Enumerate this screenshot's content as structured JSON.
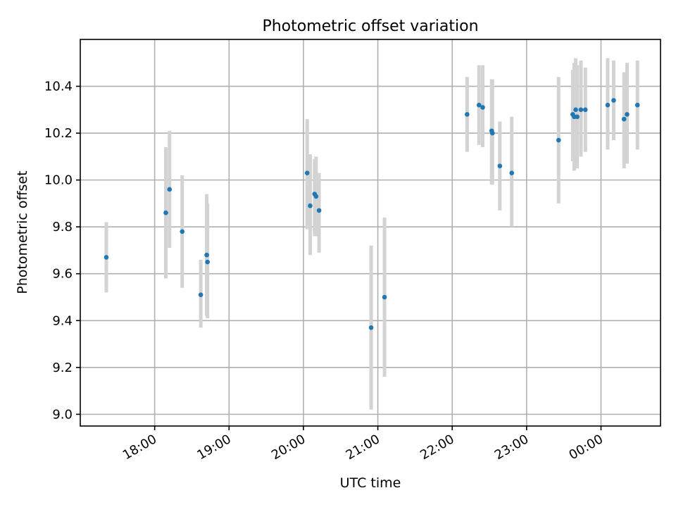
{
  "chart_data": {
    "type": "scatter",
    "title": "Photometric offset variation",
    "xlabel": "UTC time",
    "ylabel": "Photometric offset",
    "x_unit": "hours since 17:00 UTC",
    "xlim": [
      0.0,
      7.8
    ],
    "ylim": [
      8.95,
      10.6
    ],
    "grid": true,
    "x_ticks": [
      {
        "value": 1.0,
        "label": "18:00"
      },
      {
        "value": 2.0,
        "label": "19:00"
      },
      {
        "value": 3.0,
        "label": "20:00"
      },
      {
        "value": 4.0,
        "label": "21:00"
      },
      {
        "value": 5.0,
        "label": "22:00"
      },
      {
        "value": 6.0,
        "label": "23:00"
      },
      {
        "value": 7.0,
        "label": "00:00"
      }
    ],
    "y_ticks": [
      {
        "value": 9.0,
        "label": "9.0"
      },
      {
        "value": 9.2,
        "label": "9.2"
      },
      {
        "value": 9.4,
        "label": "9.4"
      },
      {
        "value": 9.6,
        "label": "9.6"
      },
      {
        "value": 9.8,
        "label": "9.8"
      },
      {
        "value": 10.0,
        "label": "10.0"
      },
      {
        "value": 10.2,
        "label": "10.2"
      },
      {
        "value": 10.4,
        "label": "10.4"
      }
    ],
    "points": [
      {
        "x": 0.35,
        "y": 9.67,
        "ylo": 9.52,
        "yhi": 9.82
      },
      {
        "x": 1.15,
        "y": 9.86,
        "ylo": 9.58,
        "yhi": 10.14
      },
      {
        "x": 1.2,
        "y": 9.96,
        "ylo": 9.71,
        "yhi": 10.21
      },
      {
        "x": 1.37,
        "y": 9.78,
        "ylo": 9.54,
        "yhi": 10.02
      },
      {
        "x": 1.62,
        "y": 9.51,
        "ylo": 9.37,
        "yhi": 9.66
      },
      {
        "x": 1.7,
        "y": 9.68,
        "ylo": 9.42,
        "yhi": 9.94
      },
      {
        "x": 1.71,
        "y": 9.65,
        "ylo": 9.41,
        "yhi": 9.9
      },
      {
        "x": 3.05,
        "y": 10.03,
        "ylo": 9.79,
        "yhi": 10.26
      },
      {
        "x": 3.09,
        "y": 9.89,
        "ylo": 9.68,
        "yhi": 10.11
      },
      {
        "x": 3.15,
        "y": 9.94,
        "ylo": 9.76,
        "yhi": 10.09
      },
      {
        "x": 3.17,
        "y": 9.93,
        "ylo": 9.76,
        "yhi": 10.1
      },
      {
        "x": 3.21,
        "y": 9.87,
        "ylo": 9.69,
        "yhi": 10.03
      },
      {
        "x": 3.91,
        "y": 9.37,
        "ylo": 9.02,
        "yhi": 9.72
      },
      {
        "x": 4.09,
        "y": 9.5,
        "ylo": 9.16,
        "yhi": 9.84
      },
      {
        "x": 5.2,
        "y": 10.28,
        "ylo": 10.12,
        "yhi": 10.44
      },
      {
        "x": 5.36,
        "y": 10.32,
        "ylo": 10.15,
        "yhi": 10.49
      },
      {
        "x": 5.41,
        "y": 10.31,
        "ylo": 10.14,
        "yhi": 10.49
      },
      {
        "x": 5.53,
        "y": 10.21,
        "ylo": 9.98,
        "yhi": 10.43
      },
      {
        "x": 5.54,
        "y": 10.2,
        "ylo": 9.98,
        "yhi": 10.43
      },
      {
        "x": 5.64,
        "y": 10.06,
        "ylo": 9.87,
        "yhi": 10.25
      },
      {
        "x": 5.8,
        "y": 10.03,
        "ylo": 9.8,
        "yhi": 10.27
      },
      {
        "x": 6.43,
        "y": 10.17,
        "ylo": 9.9,
        "yhi": 10.44
      },
      {
        "x": 6.62,
        "y": 10.28,
        "ylo": 10.08,
        "yhi": 10.47
      },
      {
        "x": 6.64,
        "y": 10.27,
        "ylo": 10.04,
        "yhi": 10.5
      },
      {
        "x": 6.66,
        "y": 10.3,
        "ylo": 10.08,
        "yhi": 10.52
      },
      {
        "x": 6.68,
        "y": 10.27,
        "ylo": 10.05,
        "yhi": 10.49
      },
      {
        "x": 6.73,
        "y": 10.3,
        "ylo": 10.1,
        "yhi": 10.51
      },
      {
        "x": 6.79,
        "y": 10.3,
        "ylo": 10.12,
        "yhi": 10.48
      },
      {
        "x": 7.09,
        "y": 10.32,
        "ylo": 10.13,
        "yhi": 10.52
      },
      {
        "x": 7.17,
        "y": 10.34,
        "ylo": 10.17,
        "yhi": 10.51
      },
      {
        "x": 7.31,
        "y": 10.26,
        "ylo": 10.05,
        "yhi": 10.46
      },
      {
        "x": 7.35,
        "y": 10.28,
        "ylo": 10.07,
        "yhi": 10.5
      },
      {
        "x": 7.49,
        "y": 10.32,
        "ylo": 10.13,
        "yhi": 10.51
      }
    ],
    "colors": {
      "point": "#1f77b4",
      "errorbar": "#d3d3d3",
      "grid": "#b0b0b0"
    }
  }
}
